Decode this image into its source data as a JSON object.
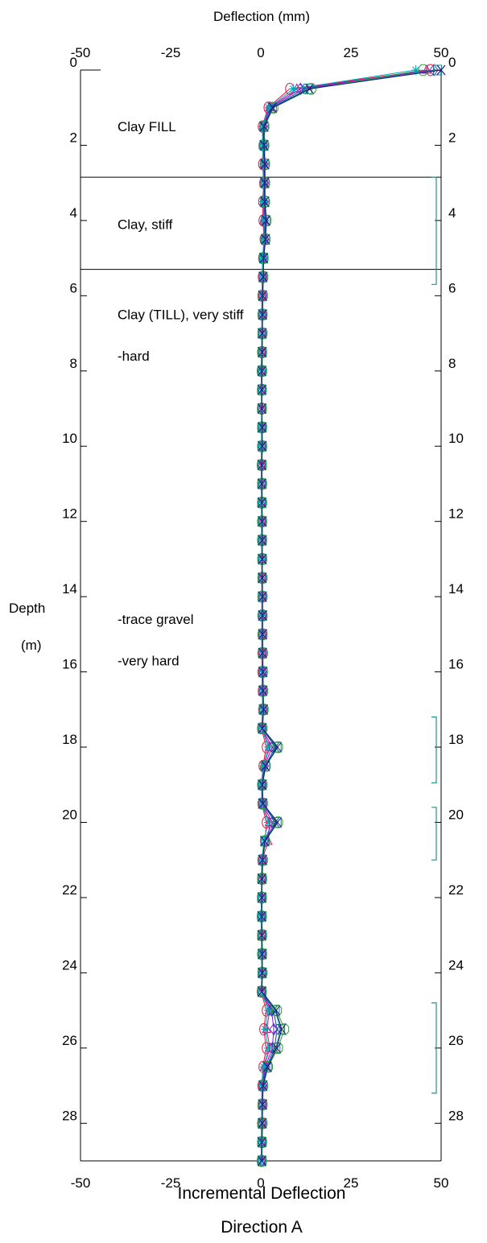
{
  "chart_data": {
    "type": "line",
    "subtype": "inclinometer-profile",
    "top_axis_title": "Deflection (mm)",
    "left_axis_title_line1": "Depth",
    "left_axis_title_line2": "(m)",
    "xlim": [
      -50,
      50
    ],
    "ylim": [
      29,
      0
    ],
    "x_ticks": [
      -50,
      -25,
      0,
      25,
      50
    ],
    "x_tick_labels": [
      "-50",
      "-25",
      "0",
      "25",
      "50"
    ],
    "y_ticks": [
      0,
      2,
      4,
      6,
      8,
      10,
      12,
      14,
      16,
      18,
      20,
      22,
      24,
      26,
      28
    ],
    "y_tick_labels": [
      "0",
      "2",
      "4",
      "6",
      "8",
      "10",
      "12",
      "14",
      "16",
      "18",
      "20",
      "22",
      "24",
      "26",
      "28"
    ],
    "footer_line1": "Incremental Deflection",
    "footer_line2": "Direction  A",
    "stratigraphy": {
      "boundaries": [
        2.85,
        5.3
      ],
      "labels": [
        {
          "text": "Clay FILL",
          "depth": 1.5
        },
        {
          "text": "Clay, stiff",
          "depth": 4.1
        },
        {
          "text": "Clay (TILL), very stiff",
          "depth": 6.5
        },
        {
          "text": "-hard",
          "depth": 7.6
        },
        {
          "text": "-trace gravel",
          "depth": 14.6
        },
        {
          "text": "-very hard",
          "depth": 15.7
        }
      ]
    },
    "right_brackets": [
      [
        2.85,
        5.7
      ],
      [
        17.2,
        18.95
      ],
      [
        19.6,
        21.0
      ],
      [
        24.8,
        27.2
      ]
    ],
    "colors": {
      "series": [
        "#e6194b",
        "#d4148a",
        "#7a1fd1",
        "#1f3fbf",
        "#0f8c8c",
        "#2e9e3a",
        "#00a8b5",
        "#1a1a7a"
      ],
      "bracket": "#2a8f8f",
      "boundary": "#000000"
    },
    "depths": [
      0,
      0.5,
      1,
      1.5,
      2,
      2.5,
      3,
      3.5,
      4,
      4.5,
      5,
      5.5,
      6,
      6.5,
      7,
      7.5,
      8,
      8.5,
      9,
      9.5,
      10,
      10.5,
      11,
      11.5,
      12,
      12.5,
      13,
      13.5,
      14,
      14.5,
      15,
      15.5,
      16,
      16.5,
      17,
      17.5,
      18,
      18.5,
      19,
      19.5,
      20,
      20.5,
      21,
      21.5,
      22,
      22.5,
      23,
      23.5,
      24,
      24.5,
      25,
      25.5,
      26,
      26.5,
      27,
      27.5,
      28,
      28.5,
      29
    ],
    "series": [
      {
        "values": [
          47,
          8,
          2,
          0.4,
          0.6,
          0.5,
          0.8,
          0.5,
          0.6,
          0.9,
          0.5,
          0.4,
          0.3,
          0.3,
          0.3,
          0.2,
          0.1,
          0.2,
          0.2,
          0.2,
          0.2,
          0.1,
          0.2,
          0.2,
          0.2,
          0.2,
          0.3,
          0.3,
          0.3,
          0.3,
          0.3,
          0.3,
          0.3,
          0.4,
          0.5,
          0.2,
          1.5,
          0.6,
          0.2,
          0.3,
          1.5,
          1.2,
          0.3,
          0.2,
          0.2,
          0.1,
          0.2,
          0.2,
          0.3,
          0.1,
          1.5,
          0.8,
          1.5,
          0.6,
          0.3,
          0.3,
          0.2,
          0.2,
          0.1
        ]
      },
      {
        "values": [
          46,
          10,
          2.4,
          0.6,
          0.6,
          0.8,
          0.8,
          0.8,
          0.8,
          1.0,
          0.6,
          0.5,
          0.4,
          0.4,
          0.3,
          0.3,
          0.2,
          0.2,
          0.2,
          0.3,
          0.3,
          0.2,
          0.2,
          0.2,
          0.3,
          0.3,
          0.3,
          0.3,
          0.3,
          0.4,
          0.4,
          0.4,
          0.4,
          0.4,
          0.5,
          0.3,
          2.5,
          0.8,
          0.3,
          0.4,
          2.4,
          2.0,
          0.4,
          0.2,
          0.2,
          0.2,
          0.2,
          0.3,
          0.3,
          0.2,
          2.5,
          1.6,
          2.5,
          1.0,
          0.4,
          0.3,
          0.2,
          0.2,
          0.2
        ]
      },
      {
        "values": [
          48,
          11,
          2.6,
          0.7,
          0.7,
          0.9,
          0.9,
          0.9,
          1.0,
          1.1,
          0.6,
          0.5,
          0.4,
          0.4,
          0.3,
          0.3,
          0.3,
          0.3,
          0.2,
          0.3,
          0.3,
          0.2,
          0.3,
          0.3,
          0.3,
          0.3,
          0.3,
          0.4,
          0.4,
          0.4,
          0.4,
          0.4,
          0.5,
          0.5,
          0.6,
          0.3,
          3.2,
          1.0,
          0.3,
          0.4,
          3.2,
          1.0,
          0.4,
          0.3,
          0.2,
          0.2,
          0.3,
          0.3,
          0.4,
          0.2,
          3.0,
          3.6,
          3.2,
          1.3,
          0.5,
          0.4,
          0.3,
          0.3,
          0.2
        ]
      },
      {
        "values": [
          50,
          12,
          3,
          0.8,
          0.8,
          1.0,
          1.0,
          1.0,
          1.2,
          1.2,
          0.7,
          0.6,
          0.5,
          0.5,
          0.4,
          0.3,
          0.3,
          0.3,
          0.3,
          0.3,
          0.3,
          0.3,
          0.3,
          0.3,
          0.3,
          0.3,
          0.4,
          0.4,
          0.4,
          0.4,
          0.5,
          0.5,
          0.5,
          0.6,
          0.7,
          0.4,
          4.0,
          1.2,
          0.4,
          0.5,
          4.0,
          1.0,
          0.5,
          0.3,
          0.3,
          0.2,
          0.3,
          0.3,
          0.4,
          0.2,
          3.5,
          4.5,
          3.8,
          1.6,
          0.6,
          0.4,
          0.4,
          0.3,
          0.3
        ]
      },
      {
        "values": [
          49,
          13,
          3.2,
          0.9,
          0.9,
          1.1,
          1.1,
          1.1,
          1.4,
          1.3,
          0.8,
          0.6,
          0.5,
          0.5,
          0.4,
          0.4,
          0.3,
          0.3,
          0.3,
          0.3,
          0.4,
          0.3,
          0.3,
          0.3,
          0.4,
          0.4,
          0.4,
          0.4,
          0.4,
          0.5,
          0.5,
          0.5,
          0.6,
          0.6,
          0.7,
          0.4,
          4.5,
          1.3,
          0.4,
          0.5,
          4.5,
          1.1,
          0.5,
          0.3,
          0.3,
          0.3,
          0.3,
          0.4,
          0.4,
          0.3,
          4.0,
          5.5,
          4.2,
          1.8,
          0.6,
          0.5,
          0.4,
          0.3,
          0.3
        ]
      },
      {
        "values": [
          45,
          14,
          3.5,
          1.0,
          1.0,
          1.2,
          1.2,
          1.2,
          1.6,
          1.3,
          0.8,
          0.7,
          0.6,
          0.5,
          0.5,
          0.4,
          0.4,
          0.3,
          0.3,
          0.4,
          0.4,
          0.3,
          0.4,
          0.4,
          0.4,
          0.4,
          0.4,
          0.5,
          0.5,
          0.5,
          0.5,
          0.6,
          0.6,
          0.7,
          0.8,
          0.5,
          4.8,
          1.4,
          0.5,
          0.6,
          4.8,
          1.2,
          0.6,
          0.4,
          0.3,
          0.3,
          0.4,
          0.4,
          0.5,
          0.3,
          4.5,
          6.5,
          4.8,
          2.0,
          0.7,
          0.5,
          0.5,
          0.4,
          0.3
        ]
      },
      {
        "values": [
          43,
          9,
          2.2,
          0.5,
          0.5,
          0.7,
          0.7,
          0.7,
          0.9,
          0.9,
          0.5,
          0.4,
          0.3,
          0.3,
          0.3,
          0.2,
          0.2,
          0.2,
          0.2,
          0.2,
          0.2,
          0.2,
          0.2,
          0.2,
          0.2,
          0.2,
          0.3,
          0.3,
          0.3,
          0.3,
          0.3,
          0.3,
          0.4,
          0.4,
          0.5,
          0.3,
          2.0,
          0.7,
          0.2,
          0.3,
          2.0,
          0.9,
          0.3,
          0.2,
          0.2,
          0.1,
          0.2,
          0.2,
          0.3,
          0.2,
          2.0,
          1.2,
          2.0,
          0.8,
          0.3,
          0.3,
          0.2,
          0.2,
          0.1
        ]
      },
      {
        "values": [
          50,
          13.5,
          3.3,
          0.9,
          0.9,
          1.1,
          1.1,
          1.1,
          1.5,
          1.3,
          0.8,
          0.7,
          0.5,
          0.5,
          0.4,
          0.4,
          0.3,
          0.3,
          0.3,
          0.4,
          0.4,
          0.3,
          0.3,
          0.3,
          0.4,
          0.4,
          0.4,
          0.4,
          0.5,
          0.5,
          0.5,
          0.5,
          0.6,
          0.6,
          0.8,
          0.4,
          4.6,
          1.3,
          0.4,
          0.6,
          4.6,
          1.1,
          0.5,
          0.3,
          0.3,
          0.3,
          0.3,
          0.4,
          0.4,
          0.3,
          4.2,
          5.8,
          4.4,
          1.9,
          0.6,
          0.5,
          0.4,
          0.3,
          0.3
        ]
      }
    ]
  }
}
